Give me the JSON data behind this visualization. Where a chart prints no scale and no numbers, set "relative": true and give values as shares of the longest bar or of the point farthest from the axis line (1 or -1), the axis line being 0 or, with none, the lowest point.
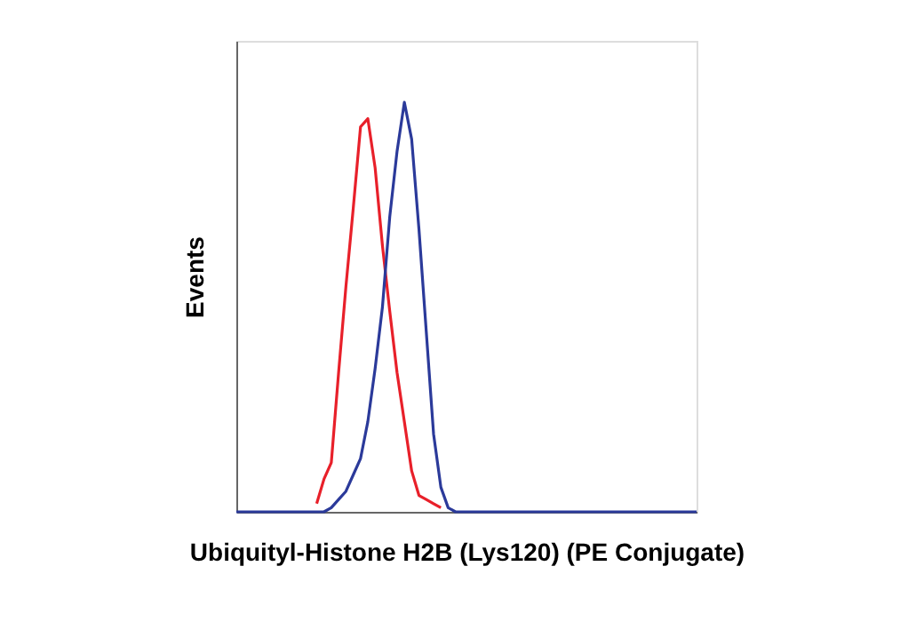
{
  "chart_data": {
    "type": "line",
    "relative": true,
    "xlabel": "Ubiquityl-Histone H2B (Lys120) (PE Conjugate)",
    "ylabel": "Events",
    "tick_labels": false,
    "grid": false,
    "legend": false,
    "marker": "none",
    "line_style": "solid",
    "categories": [
      null,
      null,
      null,
      null,
      null,
      null,
      null,
      null,
      null,
      null,
      null,
      null,
      null,
      null,
      null,
      null,
      null,
      null,
      null,
      null,
      null,
      null,
      null,
      null,
      null,
      null,
      null,
      null,
      null,
      null,
      null,
      null,
      null,
      null,
      null,
      null,
      null,
      null,
      null,
      null,
      null,
      null,
      null,
      null,
      null,
      null,
      null,
      null,
      null,
      null,
      null,
      null,
      null,
      null,
      null,
      null,
      null,
      null,
      null,
      null,
      null,
      null,
      null,
      null
    ],
    "series": [
      {
        "color": "#e8202a",
        "values": [
          null,
          null,
          null,
          null,
          null,
          null,
          null,
          null,
          null,
          null,
          null,
          0.02,
          0.08,
          0.12,
          0.34,
          0.55,
          0.74,
          0.94,
          0.96,
          0.84,
          0.65,
          0.49,
          0.34,
          0.22,
          0.1,
          0.04,
          0.03,
          0.02,
          0.01,
          null,
          null,
          null,
          null,
          null,
          null,
          null,
          null,
          null,
          null,
          null,
          null,
          null,
          null,
          null,
          null,
          null,
          null,
          null,
          null,
          null,
          null,
          null,
          null,
          null,
          null,
          null,
          null,
          null,
          null,
          null,
          null,
          null,
          null,
          null
        ]
      },
      {
        "color": "#2b3a9a",
        "values": [
          0,
          0,
          0,
          0,
          0,
          0,
          0,
          0,
          0,
          0,
          0,
          0,
          0,
          0.01,
          0.03,
          0.05,
          0.09,
          0.13,
          0.22,
          0.35,
          0.5,
          0.72,
          0.88,
          1,
          0.91,
          0.69,
          0.44,
          0.19,
          0.06,
          0.01,
          0,
          0,
          0,
          0,
          0,
          0,
          0,
          0,
          0,
          0,
          0,
          0,
          0,
          0,
          0,
          0,
          0,
          0,
          0,
          0,
          0,
          0,
          0,
          0,
          0,
          0,
          0,
          0,
          0,
          0,
          0,
          0,
          0,
          0
        ]
      }
    ]
  }
}
